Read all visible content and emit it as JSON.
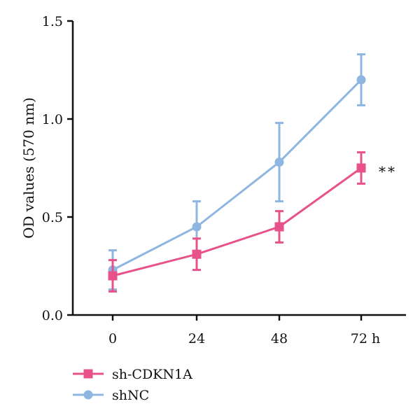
{
  "chart_data": {
    "type": "line",
    "title": "",
    "xlabel": "",
    "ylabel": "OD values (570 nm)",
    "x": [
      "0",
      "24",
      "48",
      "72 h"
    ],
    "ylim": [
      0,
      1.5
    ],
    "yticks": [
      "0.0",
      "0.5",
      "1.0",
      "1.5"
    ],
    "grid": false,
    "legend_position": "bottom-left",
    "series": [
      {
        "name": "sh-CDKN1A",
        "color": "#e8528a",
        "marker": "square",
        "values": [
          0.2,
          0.31,
          0.45,
          0.75
        ],
        "errors": [
          0.08,
          0.08,
          0.08,
          0.08
        ]
      },
      {
        "name": "shNC",
        "color": "#8fb6e0",
        "marker": "circle",
        "values": [
          0.23,
          0.45,
          0.78,
          1.2
        ],
        "errors": [
          0.1,
          0.13,
          0.2,
          0.13
        ]
      }
    ],
    "annotations": [
      {
        "text": "**",
        "x_index": 3,
        "y": 0.75
      }
    ]
  }
}
